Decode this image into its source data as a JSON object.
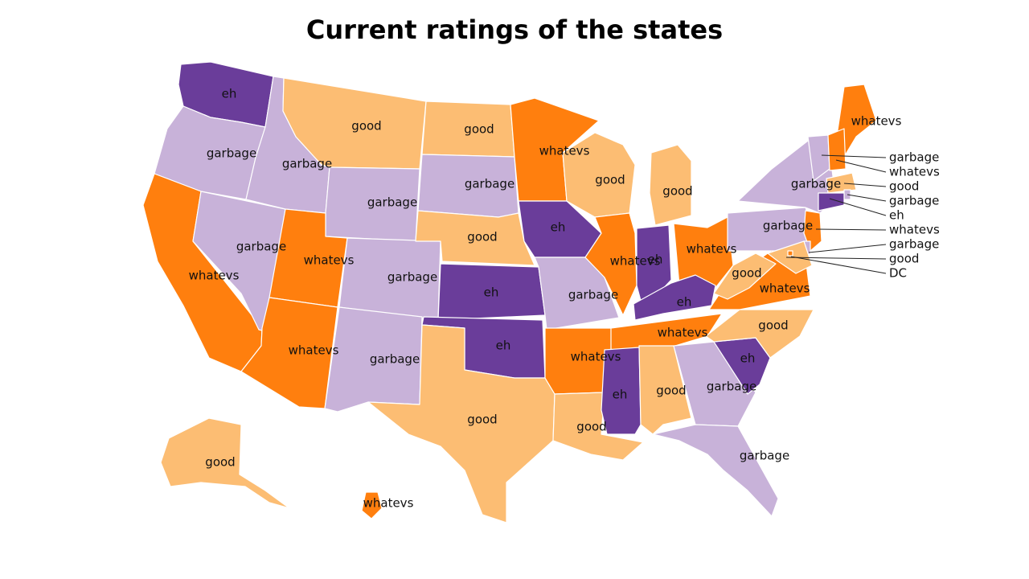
{
  "title": "Current ratings of the states",
  "colors": {
    "garbage": "#c8b2d9",
    "good": "#fcbd73",
    "whatevs": "#ff7f0e",
    "eh": "#6a3d9a"
  },
  "states": [
    {
      "code": "WA",
      "rating": "eh"
    },
    {
      "code": "OR",
      "rating": "garbage"
    },
    {
      "code": "CA",
      "rating": "whatevs"
    },
    {
      "code": "NV",
      "rating": "garbage"
    },
    {
      "code": "ID",
      "rating": "garbage"
    },
    {
      "code": "MT",
      "rating": "good"
    },
    {
      "code": "WY",
      "rating": "garbage"
    },
    {
      "code": "UT",
      "rating": "whatevs"
    },
    {
      "code": "AZ",
      "rating": "whatevs"
    },
    {
      "code": "CO",
      "rating": "garbage"
    },
    {
      "code": "NM",
      "rating": "garbage"
    },
    {
      "code": "ND",
      "rating": "good"
    },
    {
      "code": "SD",
      "rating": "garbage"
    },
    {
      "code": "NE",
      "rating": "good"
    },
    {
      "code": "KS",
      "rating": "eh"
    },
    {
      "code": "OK",
      "rating": "eh"
    },
    {
      "code": "TX",
      "rating": "good"
    },
    {
      "code": "MN",
      "rating": "whatevs"
    },
    {
      "code": "IA",
      "rating": "eh"
    },
    {
      "code": "MO",
      "rating": "garbage"
    },
    {
      "code": "AR",
      "rating": "whatevs"
    },
    {
      "code": "LA",
      "rating": "good"
    },
    {
      "code": "WI",
      "rating": "good"
    },
    {
      "code": "IL",
      "rating": "whatevs"
    },
    {
      "code": "MI",
      "rating": "good"
    },
    {
      "code": "IN",
      "rating": "eh"
    },
    {
      "code": "OH",
      "rating": "whatevs"
    },
    {
      "code": "KY",
      "rating": "eh"
    },
    {
      "code": "TN",
      "rating": "whatevs"
    },
    {
      "code": "MS",
      "rating": "eh"
    },
    {
      "code": "AL",
      "rating": "good"
    },
    {
      "code": "GA",
      "rating": "garbage"
    },
    {
      "code": "FL",
      "rating": "garbage"
    },
    {
      "code": "SC",
      "rating": "eh"
    },
    {
      "code": "NC",
      "rating": "good"
    },
    {
      "code": "VA",
      "rating": "whatevs"
    },
    {
      "code": "WV",
      "rating": "good"
    },
    {
      "code": "PA",
      "rating": "garbage"
    },
    {
      "code": "NY",
      "rating": "garbage"
    },
    {
      "code": "NJ",
      "rating": "whatevs"
    },
    {
      "code": "ME",
      "rating": "whatevs"
    },
    {
      "code": "AK",
      "rating": "good"
    },
    {
      "code": "HI",
      "rating": "whatevs"
    },
    {
      "code": "VT",
      "rating": "garbage"
    },
    {
      "code": "NH",
      "rating": "whatevs"
    },
    {
      "code": "MA",
      "rating": "good"
    },
    {
      "code": "RI",
      "rating": "garbage"
    },
    {
      "code": "CT",
      "rating": "eh"
    },
    {
      "code": "DE",
      "rating": "garbage"
    },
    {
      "code": "MD",
      "rating": "good"
    },
    {
      "code": "DC",
      "rating": "whatevs"
    }
  ],
  "callouts": [
    {
      "label": "garbage"
    },
    {
      "label": "whatevs"
    },
    {
      "label": "good"
    },
    {
      "label": "garbage"
    },
    {
      "label": "eh"
    },
    {
      "label": "whatevs"
    },
    {
      "label": "garbage"
    },
    {
      "label": "good"
    },
    {
      "label": "DC"
    }
  ]
}
